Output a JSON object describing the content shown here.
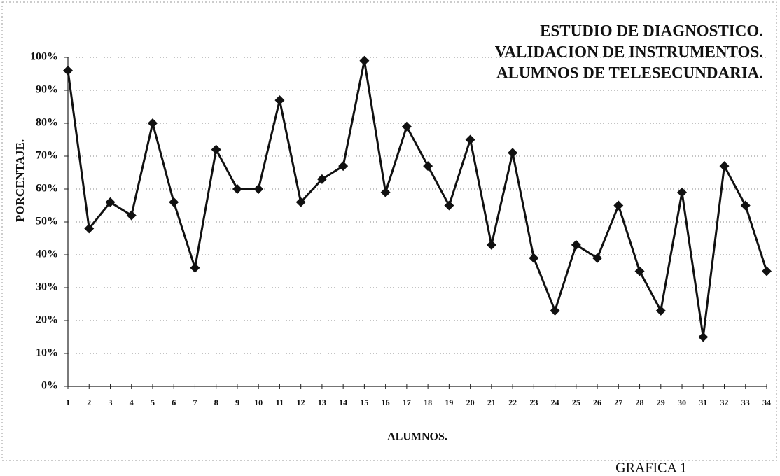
{
  "chart_data": {
    "type": "line",
    "title": [
      "ESTUDIO DE DIAGNOSTICO.",
      "VALIDACION DE INSTRUMENTOS.",
      "ALUMNOS DE TELESECUNDARIA."
    ],
    "x_label": "ALUMNOS.",
    "y_label": "PORCENTAJE.",
    "annotation": "GRAFICA 1",
    "x": [
      1,
      2,
      3,
      4,
      5,
      6,
      7,
      8,
      9,
      10,
      11,
      12,
      13,
      14,
      15,
      16,
      17,
      18,
      19,
      20,
      21,
      22,
      23,
      24,
      25,
      26,
      27,
      28,
      29,
      30,
      31,
      32,
      33,
      34
    ],
    "xlim": [
      1,
      34
    ],
    "xticks": [
      1,
      2,
      3,
      4,
      5,
      6,
      7,
      8,
      9,
      10,
      11,
      12,
      13,
      14,
      15,
      16,
      17,
      18,
      19,
      20,
      21,
      22,
      23,
      24,
      25,
      26,
      27,
      28,
      29,
      30,
      31,
      32,
      33,
      34
    ],
    "series": [
      {
        "color": "#111111",
        "values": [
          96,
          48,
          56,
          52,
          80,
          56,
          36,
          72,
          60,
          60,
          87,
          56,
          63,
          67,
          99,
          59,
          79,
          67,
          55,
          75,
          43,
          71,
          39,
          23,
          43,
          39,
          55,
          35,
          23,
          59,
          15,
          67,
          55,
          35
        ]
      }
    ],
    "ylim": [
      0,
      100
    ],
    "yticks": [
      {
        "value": 0,
        "label": "0%"
      },
      {
        "value": 10,
        "label": "10%"
      },
      {
        "value": 20,
        "label": "20%"
      },
      {
        "value": 30,
        "label": "30%"
      },
      {
        "value": 40,
        "label": "40%"
      },
      {
        "value": 50,
        "label": "50%"
      },
      {
        "value": 60,
        "label": "60%"
      },
      {
        "value": 70,
        "label": "70%"
      },
      {
        "value": 80,
        "label": "80%"
      },
      {
        "value": 90,
        "label": "90%"
      },
      {
        "value": 100,
        "label": "100%"
      }
    ],
    "grid": true
  }
}
